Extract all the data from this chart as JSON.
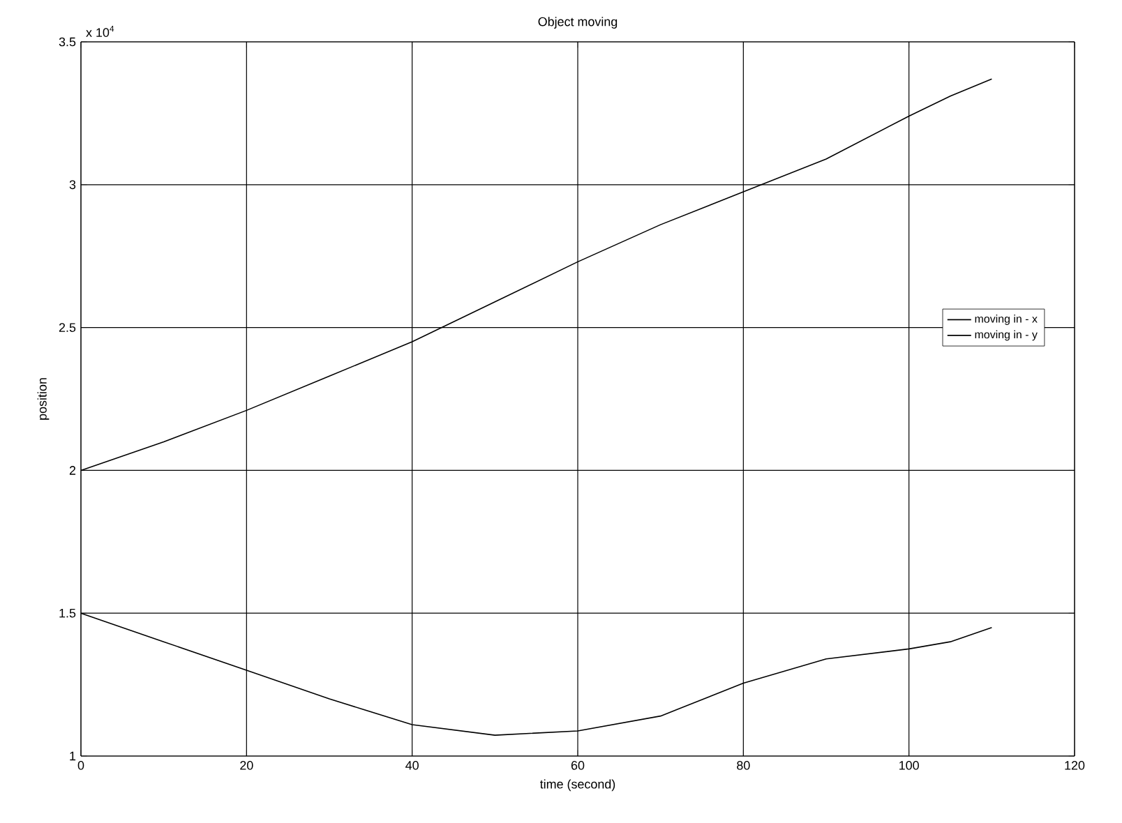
{
  "chart_data": {
    "type": "line",
    "title": "Object moving",
    "xlabel": "time (second)",
    "ylabel": "position",
    "annotations": [
      "x 10$^{4}$"
    ],
    "xlim": [
      0,
      120
    ],
    "xticks": [
      0,
      20,
      40,
      60,
      80,
      100,
      120
    ],
    "ylim": [
      1,
      3.5
    ],
    "yticks": [
      1,
      1.5,
      2,
      2.5,
      3,
      3.5
    ],
    "grid": true,
    "legend": "right",
    "marker": "none",
    "line_style": "solid",
    "x": [
      0,
      10,
      20,
      30,
      40,
      50,
      60,
      70,
      80,
      90,
      100,
      105,
      110
    ],
    "series": [
      {
        "name": "moving in - x",
        "color": "#000000",
        "values": [
          2.0,
          2.1,
          2.21,
          2.33,
          2.45,
          2.59,
          2.73,
          2.86,
          2.975,
          3.09,
          3.24,
          3.31,
          3.37
        ]
      },
      {
        "name": "moving in - y",
        "color": "#000000",
        "values": [
          1.5,
          1.4,
          1.3,
          1.2,
          1.11,
          1.073,
          1.088,
          1.14,
          1.255,
          1.34,
          1.375,
          1.4,
          1.45
        ]
      }
    ]
  }
}
